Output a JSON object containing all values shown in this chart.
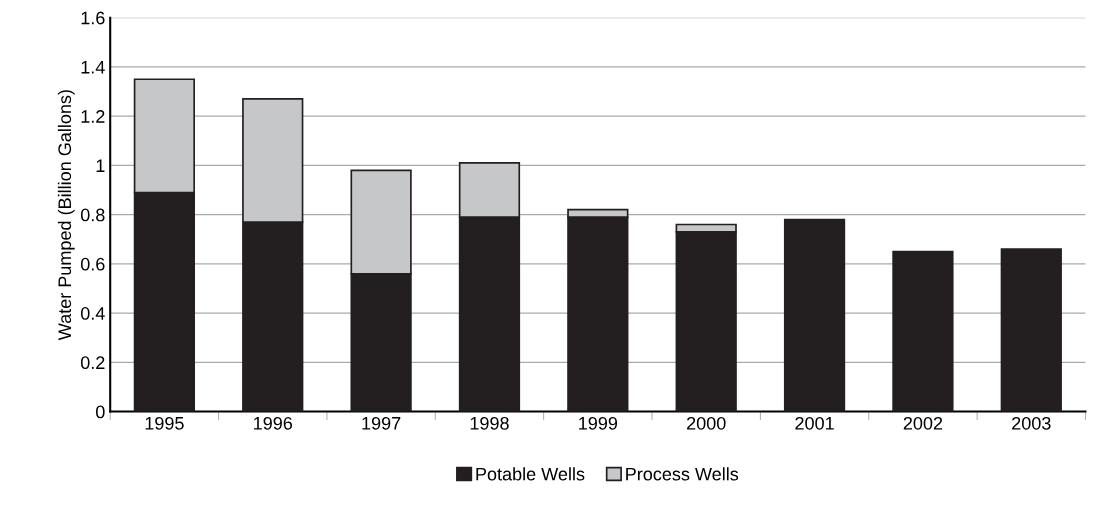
{
  "chart_data": {
    "type": "bar",
    "stacked": true,
    "ylabel": "Water Pumped (Billion Gallons)",
    "categories": [
      "1995",
      "1996",
      "1997",
      "1998",
      "1999",
      "2000",
      "2001",
      "2002",
      "2003"
    ],
    "series": [
      {
        "name": "Potable Wells",
        "color": "#231f20",
        "values": [
          0.89,
          0.77,
          0.56,
          0.79,
          0.79,
          0.73,
          0.78,
          0.65,
          0.66
        ]
      },
      {
        "name": "Process Wells",
        "color": "#c6c7c9",
        "values": [
          0.46,
          0.5,
          0.42,
          0.22,
          0.03,
          0.03,
          null,
          null,
          null
        ]
      }
    ],
    "ylim": [
      0,
      1.6
    ],
    "yticks": [
      0,
      0.2,
      0.4,
      0.6,
      0.8,
      1,
      1.2,
      1.4,
      1.6
    ],
    "grid": "y",
    "legend": "bottom"
  }
}
